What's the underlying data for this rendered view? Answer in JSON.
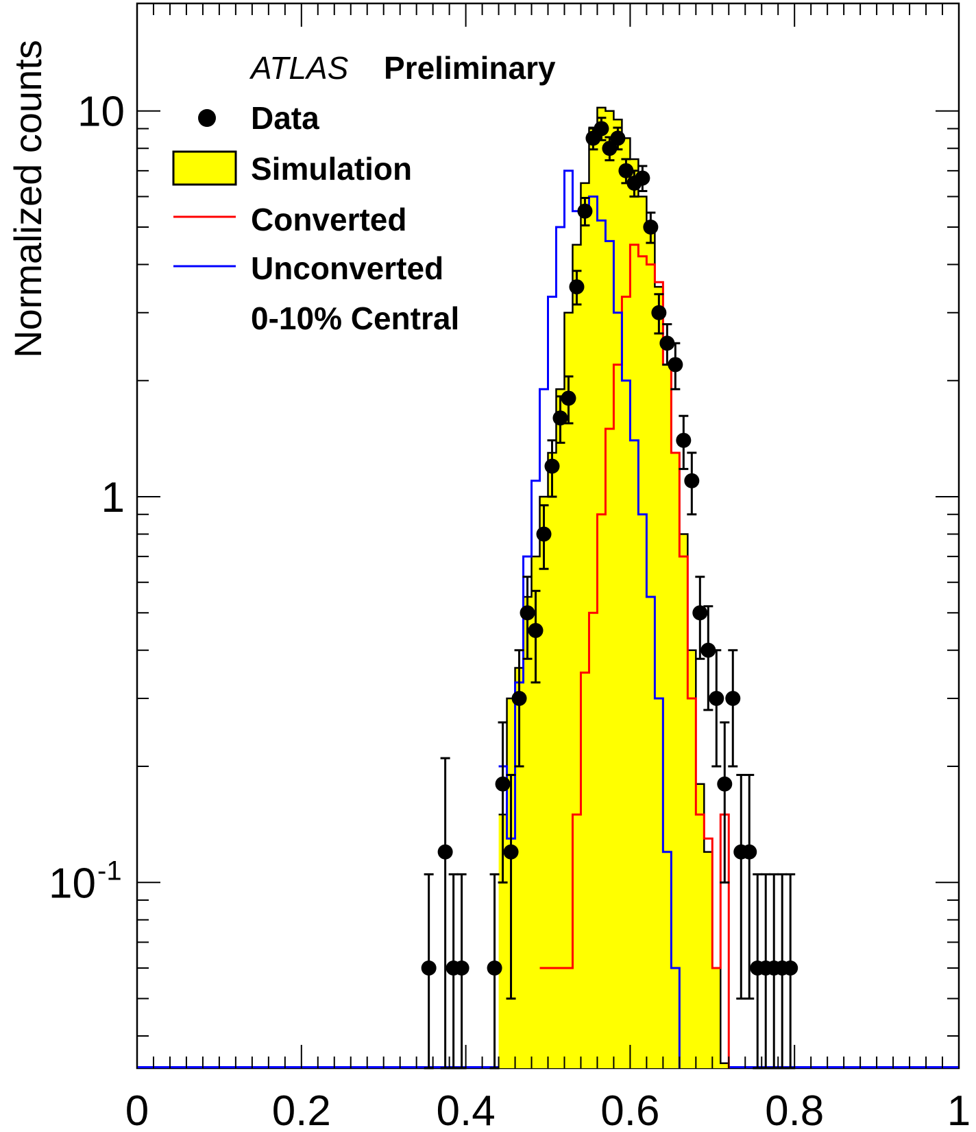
{
  "chart_data": {
    "type": "histogram",
    "title": "",
    "xlabel": "",
    "ylabel": "Normalized counts",
    "xlim": [
      0,
      1
    ],
    "ylim": [
      0.033,
      19.0
    ],
    "yscale": "log",
    "grid": false,
    "legend_position": "top-left",
    "xticks": [
      {
        "value": 0,
        "label": "0"
      },
      {
        "value": 0.2,
        "label": "0.2"
      },
      {
        "value": 0.4,
        "label": "0.4"
      },
      {
        "value": 0.6,
        "label": "0.6"
      },
      {
        "value": 0.8,
        "label": "0.8"
      },
      {
        "value": 1,
        "label": "1"
      }
    ],
    "yticks": [
      {
        "value": 10,
        "label": "10",
        "sup": ""
      },
      {
        "value": 1,
        "label": "1",
        "sup": ""
      },
      {
        "value": 0.1,
        "label": "10",
        "sup": "-1"
      }
    ],
    "annotations": {
      "experiment": "ATLAS",
      "status": "Preliminary",
      "selection": "0-10% Central"
    },
    "colors": {
      "simulation_fill": "#ffff00",
      "simulation_line": "#000000",
      "converted": "#ff0000",
      "unconverted": "#0000ff",
      "data": "#000000"
    },
    "legend": [
      {
        "label": "Data",
        "style": "marker"
      },
      {
        "label": "Simulation",
        "style": "fill"
      },
      {
        "label": "Converted",
        "style": "line-red"
      },
      {
        "label": "Unconverted",
        "style": "line-blue"
      }
    ],
    "series": [
      {
        "name": "Simulation",
        "style": "filled-step",
        "x": [
          0.44,
          0.45,
          0.46,
          0.47,
          0.48,
          0.49,
          0.5,
          0.51,
          0.52,
          0.53,
          0.54,
          0.55,
          0.56,
          0.57,
          0.58,
          0.59,
          0.6,
          0.61,
          0.62,
          0.63,
          0.64,
          0.65,
          0.66,
          0.67,
          0.68,
          0.69,
          0.7,
          0.71,
          0.72
        ],
        "values": [
          0.15,
          0.3,
          0.36,
          0.55,
          0.7,
          1.0,
          1.3,
          1.9,
          3.0,
          4.5,
          6.5,
          9.0,
          10.2,
          10.0,
          9.5,
          8.5,
          7.5,
          6.0,
          5.0,
          3.5,
          2.2,
          1.3,
          0.8,
          0.4,
          0.18,
          0.12,
          0.06,
          0.034
        ]
      },
      {
        "name": "Converted",
        "style": "step",
        "x": [
          0.49,
          0.5,
          0.51,
          0.52,
          0.53,
          0.54,
          0.55,
          0.56,
          0.57,
          0.58,
          0.59,
          0.6,
          0.61,
          0.62,
          0.63,
          0.64,
          0.65,
          0.66,
          0.67,
          0.68,
          0.69,
          0.7,
          0.71,
          0.72
        ],
        "values": [
          0.06,
          0.06,
          0.06,
          0.06,
          0.15,
          0.35,
          0.5,
          0.9,
          1.5,
          2.2,
          3.3,
          4.5,
          4.2,
          4.0,
          3.6,
          2.2,
          1.3,
          0.7,
          0.3,
          0.15,
          0.13,
          0.06,
          0.15
        ]
      },
      {
        "name": "Unconverted",
        "style": "step",
        "x": [
          0.44,
          0.45,
          0.46,
          0.47,
          0.48,
          0.49,
          0.5,
          0.51,
          0.52,
          0.53,
          0.54,
          0.55,
          0.56,
          0.57,
          0.58,
          0.59,
          0.6,
          0.61,
          0.62,
          0.63,
          0.64,
          0.65,
          0.66
        ],
        "values": [
          0.2,
          0.13,
          0.33,
          0.7,
          1.1,
          1.9,
          3.3,
          5.0,
          7.0,
          5.5,
          5.6,
          6.0,
          5.2,
          4.6,
          3.0,
          2.0,
          1.4,
          0.9,
          0.55,
          0.3,
          0.12,
          0.06
        ]
      },
      {
        "name": "Data",
        "style": "points",
        "x": [
          0.355,
          0.375,
          0.385,
          0.395,
          0.435,
          0.445,
          0.455,
          0.465,
          0.475,
          0.485,
          0.495,
          0.505,
          0.515,
          0.525,
          0.535,
          0.545,
          0.555,
          0.565,
          0.575,
          0.585,
          0.595,
          0.605,
          0.615,
          0.625,
          0.635,
          0.645,
          0.655,
          0.665,
          0.675,
          0.685,
          0.695,
          0.705,
          0.715,
          0.725,
          0.735,
          0.745,
          0.755,
          0.765,
          0.775,
          0.785,
          0.795
        ],
        "values": [
          0.06,
          0.12,
          0.06,
          0.06,
          0.06,
          0.18,
          0.12,
          0.3,
          0.5,
          0.45,
          0.8,
          1.2,
          1.6,
          1.8,
          3.5,
          5.5,
          8.5,
          9.0,
          8.0,
          8.5,
          7.0,
          6.5,
          6.7,
          5.0,
          3.0,
          2.5,
          2.2,
          1.4,
          1.1,
          0.5,
          0.4,
          0.3,
          0.18,
          0.3,
          0.12,
          0.12,
          0.06,
          0.06,
          0.06,
          0.06,
          0.06
        ],
        "errors": [
          0.045,
          0.09,
          0.045,
          0.045,
          0.045,
          0.08,
          0.07,
          0.1,
          0.12,
          0.12,
          0.15,
          0.2,
          0.22,
          0.25,
          0.35,
          0.45,
          0.55,
          0.6,
          0.55,
          0.55,
          0.5,
          0.5,
          0.5,
          0.45,
          0.35,
          0.3,
          0.3,
          0.22,
          0.2,
          0.12,
          0.12,
          0.1,
          0.08,
          0.1,
          0.07,
          0.07,
          0.045,
          0.045,
          0.045,
          0.045,
          0.045
        ]
      }
    ]
  }
}
